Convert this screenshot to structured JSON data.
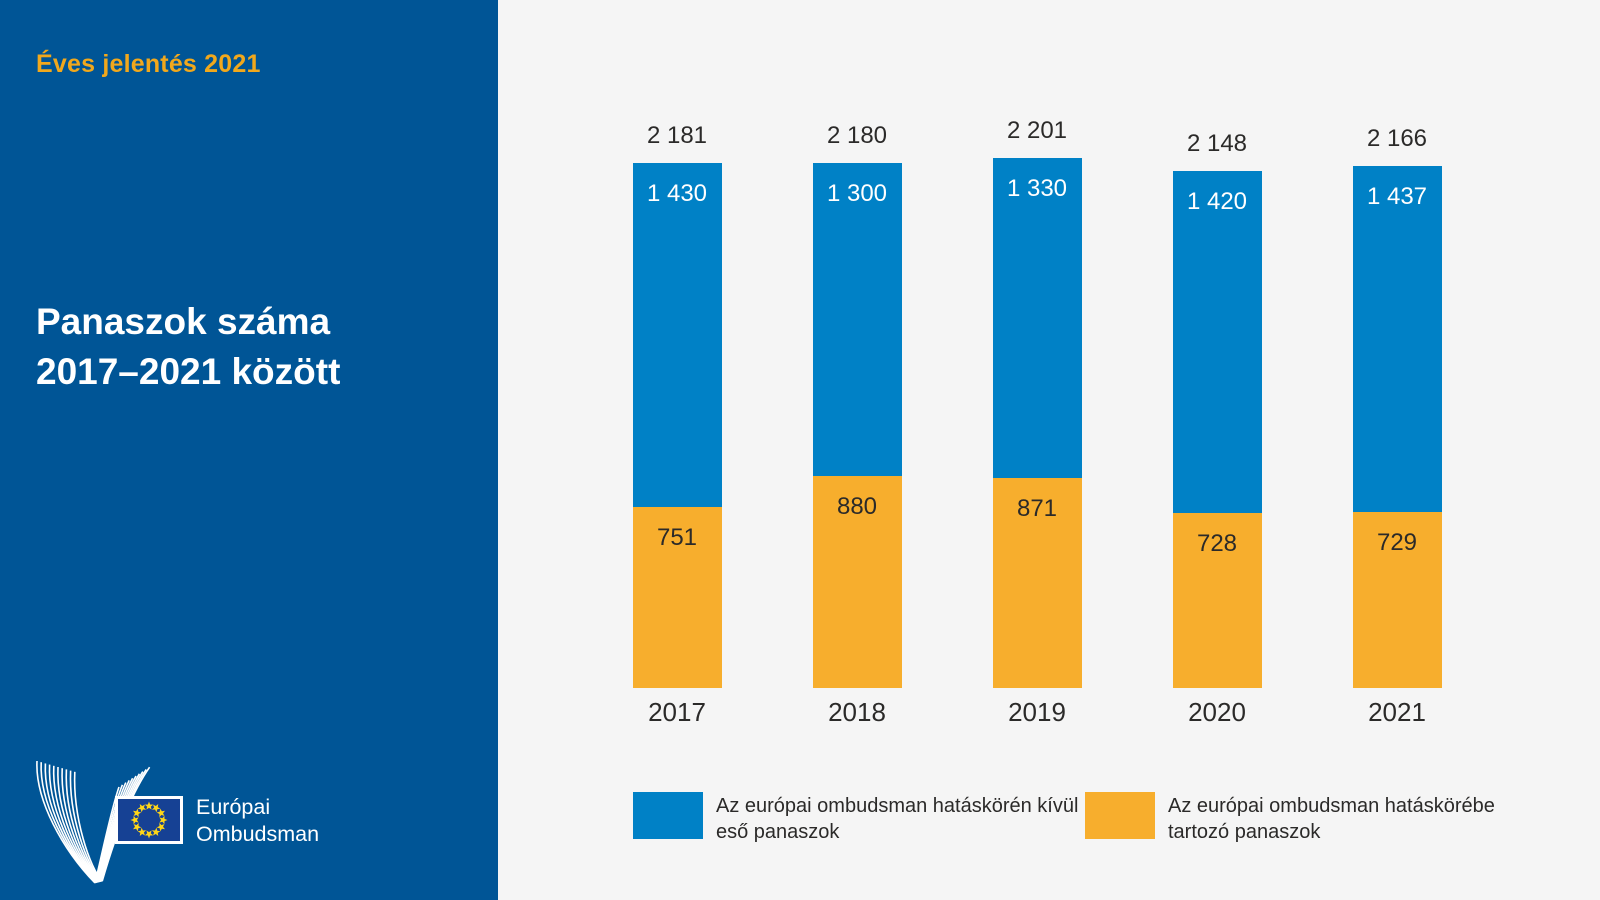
{
  "theme": {
    "sidebar_bg": "#005596",
    "panel_bg": "#f5f5f5",
    "heading_accent": "#f1a81c",
    "text_dark": "#2b2a29",
    "flag_blue": "#164194",
    "star_yellow": "#ffd617"
  },
  "sidebar": {
    "report_label": "Éves jelentés 2021",
    "title_line1": "Panaszok száma",
    "title_line2": "2017–2021 között",
    "logo": {
      "org_line1": "Európai",
      "org_line2": "Ombudsman"
    }
  },
  "chart_data": {
    "type": "bar",
    "stacked": true,
    "title": "Panaszok száma 2017–2021 között",
    "categories": [
      "2017",
      "2018",
      "2019",
      "2020",
      "2021"
    ],
    "series": [
      {
        "name": "Az európai ombudsman hatáskörén kívül eső panaszok",
        "color": "#0081c6",
        "label_color": "#ffffff",
        "values": [
          1430,
          1300,
          1330,
          1420,
          1437
        ],
        "value_labels": [
          "1 430",
          "1 300",
          "1 330",
          "1 420",
          "1 437"
        ]
      },
      {
        "name": "Az európai ombudsman hatáskörébe tartozó panaszok",
        "color": "#f7ae2d",
        "label_color": "#2b2a29",
        "values": [
          751,
          880,
          871,
          728,
          729
        ],
        "value_labels": [
          "751",
          "880",
          "871",
          "728",
          "729"
        ]
      }
    ],
    "totals": [
      2181,
      2180,
      2201,
      2148,
      2166
    ],
    "total_labels": [
      "2 181",
      "2 180",
      "2 201",
      "2 148",
      "2 166"
    ],
    "ylim": [
      0,
      2201
    ],
    "grid": false,
    "legend_position": "bottom"
  },
  "legend": {
    "items": [
      {
        "color": "#0081c6",
        "label_line1": "Az európai ombudsman hatáskörén kívül",
        "label_line2": "eső panaszok"
      },
      {
        "color": "#f7ae2d",
        "label_line1": "Az európai ombudsman hatáskörébe",
        "label_line2": "tartozó panaszok"
      }
    ]
  }
}
